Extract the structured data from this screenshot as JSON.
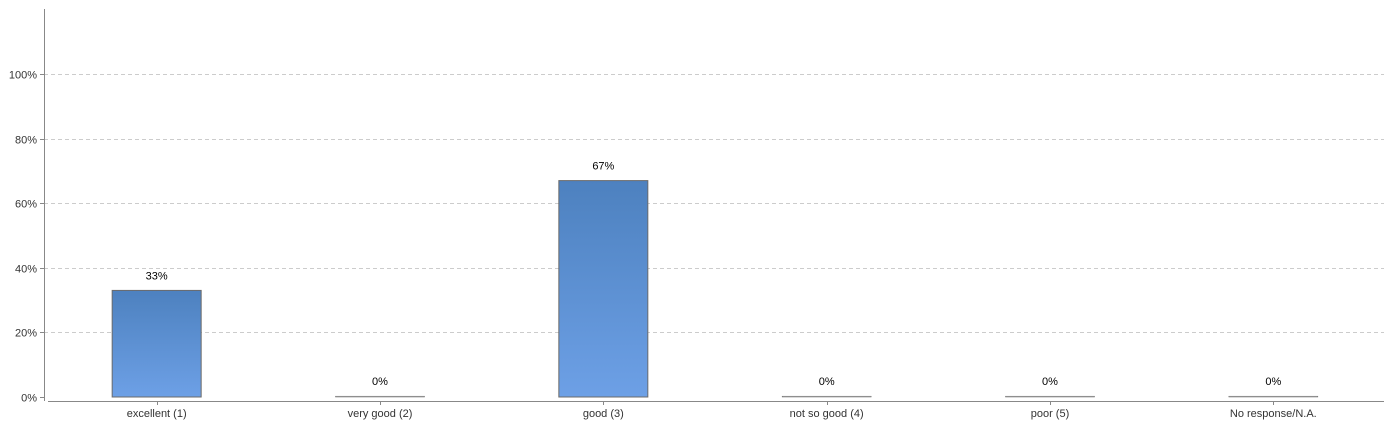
{
  "chart_data": {
    "type": "bar",
    "categories": [
      "excellent (1)",
      "very good (2)",
      "good (3)",
      "not so good (4)",
      "poor (5)",
      "No response/N.A."
    ],
    "values": [
      33,
      0,
      67,
      0,
      0,
      0
    ],
    "data_labels": [
      "33%",
      "0%",
      "67%",
      "0%",
      "0%",
      "0%"
    ],
    "y_ticks": [
      0,
      20,
      40,
      60,
      80,
      100
    ],
    "y_tick_labels": [
      "0%",
      "20%",
      "40%",
      "60%",
      "80%",
      "100%"
    ],
    "ylim": [
      0,
      120
    ],
    "grid": true,
    "legend": "none",
    "colors": {
      "bar_top": "#4d81bf",
      "bar_bottom": "#6da0e6",
      "bar_edge": "#6b6b6b",
      "grid": "#cccccc",
      "axis": "#888888"
    }
  }
}
